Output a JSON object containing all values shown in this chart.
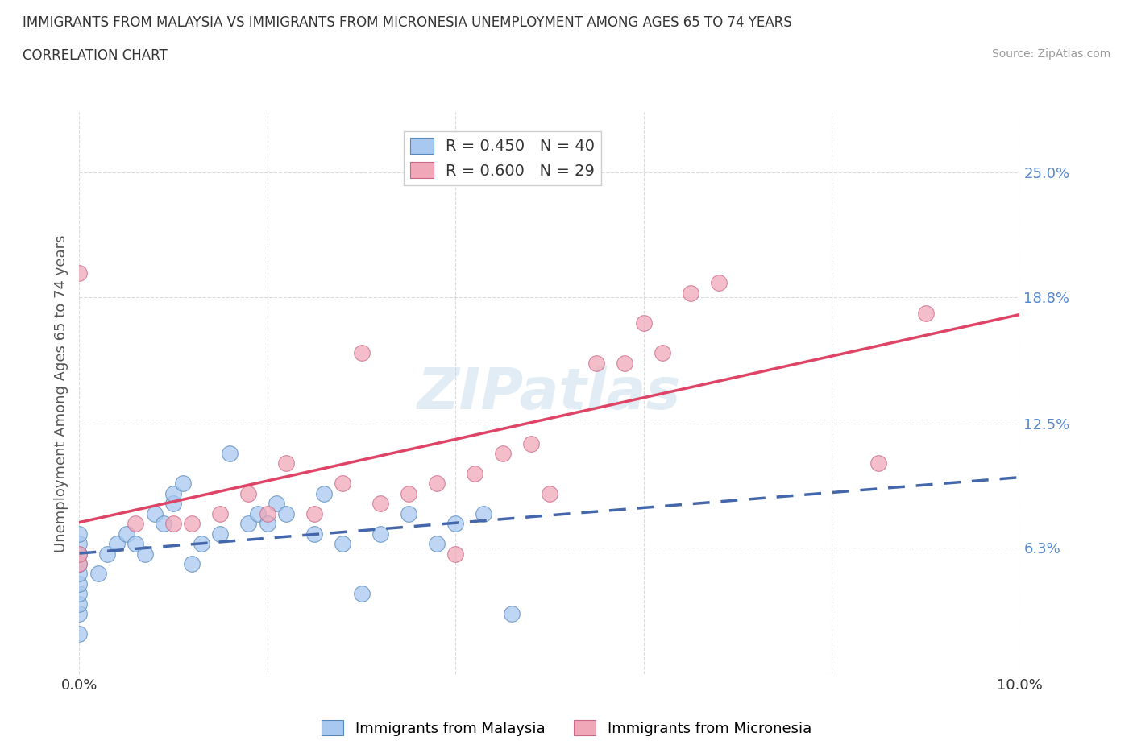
{
  "title_line1": "IMMIGRANTS FROM MALAYSIA VS IMMIGRANTS FROM MICRONESIA UNEMPLOYMENT AMONG AGES 65 TO 74 YEARS",
  "title_line2": "CORRELATION CHART",
  "source": "Source: ZipAtlas.com",
  "ylabel": "Unemployment Among Ages 65 to 74 years",
  "xlim": [
    0.0,
    0.1
  ],
  "ylim": [
    0.0,
    0.28
  ],
  "ytick_positions": [
    0.0,
    0.063,
    0.125,
    0.188,
    0.25
  ],
  "ytick_labels": [
    "",
    "6.3%",
    "12.5%",
    "18.8%",
    "25.0%"
  ],
  "malaysia_color": "#a8c8f0",
  "malaysia_edge": "#5588bb",
  "micronesia_color": "#f0a8b8",
  "micronesia_edge": "#cc6688",
  "malaysia_line_color": "#4466aa",
  "micronesia_line_color": "#dd4466",
  "R_malaysia": 0.45,
  "N_malaysia": 40,
  "R_micronesia": 0.6,
  "N_micronesia": 29,
  "legend_label_malaysia": "Immigrants from Malaysia",
  "legend_label_micronesia": "Immigrants from Micronesia",
  "watermark": "ZIPatlas",
  "malaysia_scatter_x": [
    0.0,
    0.0,
    0.0,
    0.0,
    0.0,
    0.0,
    0.0,
    0.0,
    0.0,
    0.0,
    0.002,
    0.003,
    0.004,
    0.005,
    0.006,
    0.007,
    0.008,
    0.009,
    0.01,
    0.01,
    0.011,
    0.012,
    0.013,
    0.015,
    0.016,
    0.018,
    0.019,
    0.02,
    0.021,
    0.022,
    0.025,
    0.026,
    0.028,
    0.03,
    0.032,
    0.035,
    0.038,
    0.04,
    0.043,
    0.046
  ],
  "malaysia_scatter_y": [
    0.02,
    0.03,
    0.035,
    0.04,
    0.045,
    0.05,
    0.055,
    0.06,
    0.065,
    0.07,
    0.05,
    0.06,
    0.065,
    0.07,
    0.065,
    0.06,
    0.08,
    0.075,
    0.085,
    0.09,
    0.095,
    0.055,
    0.065,
    0.07,
    0.11,
    0.075,
    0.08,
    0.075,
    0.085,
    0.08,
    0.07,
    0.09,
    0.065,
    0.04,
    0.07,
    0.08,
    0.065,
    0.075,
    0.08,
    0.03
  ],
  "micronesia_scatter_x": [
    0.0,
    0.0,
    0.0,
    0.006,
    0.01,
    0.012,
    0.015,
    0.018,
    0.02,
    0.022,
    0.025,
    0.028,
    0.03,
    0.032,
    0.035,
    0.038,
    0.04,
    0.042,
    0.045,
    0.048,
    0.05,
    0.055,
    0.058,
    0.06,
    0.062,
    0.065,
    0.068,
    0.085,
    0.09
  ],
  "micronesia_scatter_y": [
    0.055,
    0.06,
    0.2,
    0.075,
    0.075,
    0.075,
    0.08,
    0.09,
    0.08,
    0.105,
    0.08,
    0.095,
    0.16,
    0.085,
    0.09,
    0.095,
    0.06,
    0.1,
    0.11,
    0.115,
    0.09,
    0.155,
    0.155,
    0.175,
    0.16,
    0.19,
    0.195,
    0.105,
    0.18
  ],
  "background_color": "#ffffff",
  "plot_bg_color": "#ffffff",
  "grid_color": "#cccccc",
  "ylabel_color": "#555555",
  "ytick_color": "#5588cc"
}
